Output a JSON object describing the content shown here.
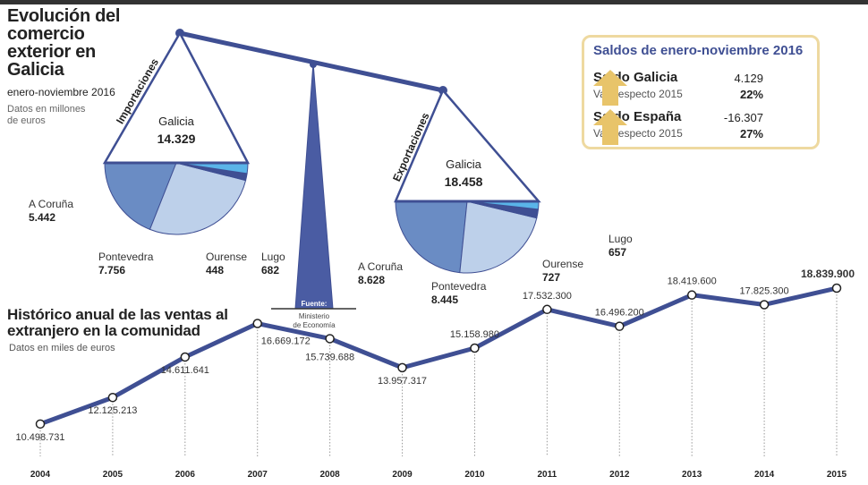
{
  "header": {
    "title": "Evolución del comercio exterior en Galicia",
    "period": "enero-noviembre 2016",
    "units": "Datos en millones de euros"
  },
  "source": {
    "label": "Fuente:",
    "line1": "Ministerio",
    "line2": "de Economía"
  },
  "colors": {
    "accent": "#3f4f93",
    "coruna": "#6a8cc4",
    "pontevedra": "#bdd0ea",
    "ourense": "#3f4f93",
    "lugo": "#5ab4e8",
    "box_border": "#eed9a0",
    "arrow": "#e8c46a"
  },
  "chart_data": [
    {
      "type": "pie",
      "title": "Importaciones",
      "total_label": "Galicia",
      "total": "14.329",
      "slices": [
        {
          "name": "A Coruña",
          "value": 5442,
          "label": "5.442"
        },
        {
          "name": "Pontevedra",
          "value": 7756,
          "label": "7.756"
        },
        {
          "name": "Ourense",
          "value": 448,
          "label": "448"
        },
        {
          "name": "Lugo",
          "value": 682,
          "label": "682"
        }
      ]
    },
    {
      "type": "pie",
      "title": "Exportaciones",
      "total_label": "Galicia",
      "total": "18.458",
      "slices": [
        {
          "name": "A Coruña",
          "value": 8628,
          "label": "8.628"
        },
        {
          "name": "Pontevedra",
          "value": 8445,
          "label": "8.445"
        },
        {
          "name": "Ourense",
          "value": 727,
          "label": "727"
        },
        {
          "name": "Lugo",
          "value": 657,
          "label": "657"
        }
      ]
    },
    {
      "type": "line",
      "title": "Histórico anual de las ventas al extranjero en la comunidad",
      "subtitle": "Datos en miles de euros",
      "x": [
        "2004",
        "2005",
        "2006",
        "2007",
        "2008",
        "2009",
        "2010",
        "2011",
        "2012",
        "2013",
        "2014",
        "2015"
      ],
      "values": [
        10498731,
        12125213,
        14611641,
        16669172,
        15739688,
        13957317,
        15158980,
        17532300,
        16496200,
        18419600,
        17825300,
        18839900
      ],
      "labels": [
        "10.498.731",
        "12.125.213",
        "14.611.641",
        "16.669.172",
        "15.739.688",
        "13.957.317",
        "15.158.980",
        "17.532.300",
        "16.496.200",
        "18.419.600",
        "17.825.300",
        "18.839.900"
      ],
      "ylim": [
        9500000,
        19500000
      ]
    }
  ],
  "saldos": {
    "title": "Saldos de enero-noviembre 2016",
    "rows": [
      {
        "label": "Saldo Galicia",
        "var_label": "Var. respecto 2015",
        "value": "4.129",
        "pct": "22%",
        "trend": "up"
      },
      {
        "label": "Saldo España",
        "var_label": "Var. respecto 2015",
        "value": "-16.307",
        "pct": "27%",
        "trend": "up"
      }
    ]
  }
}
